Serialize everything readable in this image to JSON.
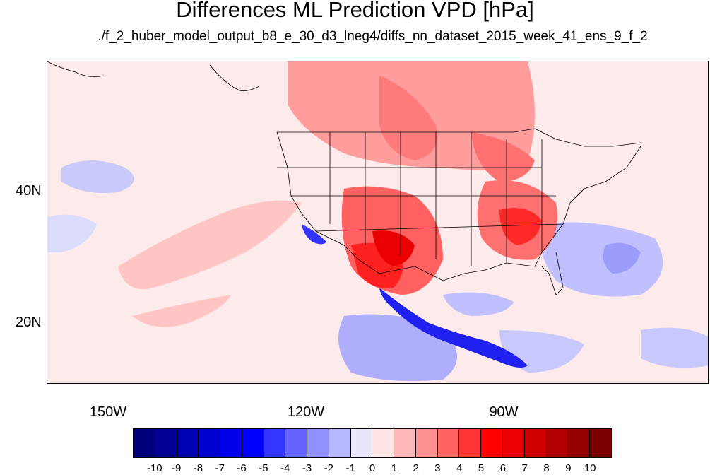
{
  "title": "Differences ML Prediction VPD [hPa]",
  "subtitle": "./f_2_huber_model_output_b8_e_30_d3_lneg4/diffs_nn_dataset_2015_week_41_ens_9_f_2",
  "map": {
    "lat_labels": [
      "40N",
      "20N"
    ],
    "lon_labels": [
      "150W",
      "120W",
      "90W"
    ]
  },
  "colorbar": {
    "labels": [
      "-10",
      "-9",
      "-8",
      "-7",
      "-6",
      "-5",
      "-4",
      "-3",
      "-2",
      "-1",
      "0",
      "1",
      "2",
      "3",
      "4",
      "5",
      "6",
      "7",
      "8",
      "9",
      "10"
    ],
    "colors": [
      "#00007a",
      "#000096",
      "#0000b3",
      "#0000d1",
      "#0000ea",
      "#0000ff",
      "#3434ff",
      "#6464ff",
      "#9090ff",
      "#b7b7ff",
      "#e6e6ff",
      "#ffe6e6",
      "#ffb7b7",
      "#ff9090",
      "#ff6464",
      "#ff3434",
      "#ff0000",
      "#ea0000",
      "#d10000",
      "#b30000",
      "#960000",
      "#7a0000"
    ]
  }
}
